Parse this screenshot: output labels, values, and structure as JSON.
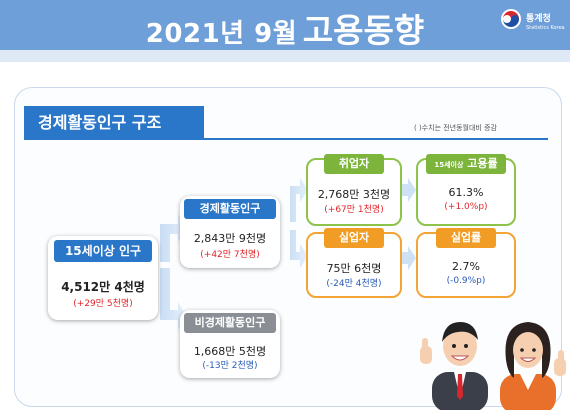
{
  "header": {
    "title_main": "2021년 9월",
    "title_big": "고용동향",
    "logo_name": "통계청",
    "logo_sub": "Statistics Korea"
  },
  "section": {
    "title": "경제활동인구 구조",
    "note": "( )수치는 전년동월대비 증감"
  },
  "nodes": {
    "pop15": {
      "label": "15세이상 인구",
      "value": "4,512만 4천명",
      "change": "(+29만 5천명)"
    },
    "econ_active": {
      "label": "경제활동인구",
      "value": "2,843만 9천명",
      "change": "(+42만 7천명)"
    },
    "non_active": {
      "label": "비경제활동인구",
      "value": "1,668만 5천명",
      "change": "(-13만 2천명)"
    },
    "employed": {
      "label": "취업자",
      "value": "2,768만 3천명",
      "change": "(+67만 1천명)"
    },
    "unemployed": {
      "label": "실업자",
      "value": "75만 6천명",
      "change": "(-24만 4천명)"
    },
    "emp_rate": {
      "label_small": "15세이상",
      "label": "고용률",
      "value": "61.3%",
      "change": "(+1.0%p)"
    },
    "unemp_rate": {
      "label": "실업률",
      "value": "2.7%",
      "change": "(-0.9%p)"
    }
  },
  "colors": {
    "header": "#6f9fd8",
    "accent_blue": "#2a76c8",
    "green": "#7cb43c",
    "orange": "#f09c25",
    "increase": "#e1262a",
    "decrease": "#2a5bb8"
  }
}
